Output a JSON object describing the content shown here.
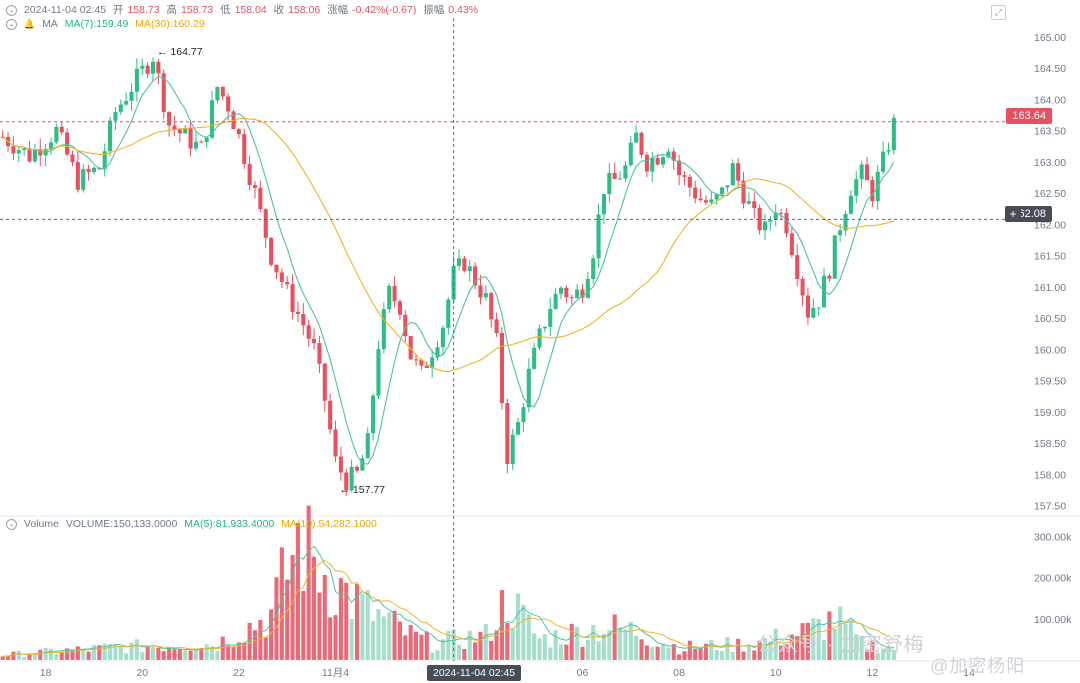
{
  "header": {
    "datetime": "2024-11-04 02:45",
    "open_label": "开",
    "open": "158.73",
    "high_label": "高",
    "high": "158.73",
    "low_label": "低",
    "low": "158.04",
    "close_label": "收",
    "close": "158.06",
    "change_label": "涨幅",
    "change": "-0.42%(-0.67)",
    "amplitude_label": "振幅",
    "amplitude": "0.43%"
  },
  "ma_header": {
    "label": "MA",
    "ma7": "MA(7):159.49",
    "ma30": "MA(30):160.29"
  },
  "volume_header": {
    "label": "Volume",
    "volume": "VOLUME:150,133.0000",
    "ma5": "MA(5):81,933.4000",
    "ma10": "MA(10):54,282.1000"
  },
  "price_tags": {
    "last": "163.64",
    "crosshair": "162.08"
  },
  "crosshair_time": "2024-11-04 02:45",
  "watermark": {
    "line1": "公众号 · 加密舒梅",
    "line2": "@加密杨阳"
  },
  "colors": {
    "up": "#2ebd85",
    "down": "#e84f5f",
    "ma7": "#4fc3a1",
    "ma30": "#f0b429",
    "grid": "#eef0f3",
    "axis_text": "#707a8a"
  },
  "chart_data": {
    "type": "candlestick",
    "price_axis": {
      "ticks": [
        "165.00",
        "164.50",
        "164.00",
        "163.50",
        "163.00",
        "162.50",
        "162.00",
        "161.50",
        "161.00",
        "160.50",
        "160.00",
        "159.50",
        "159.00",
        "158.50",
        "158.00",
        "157.50"
      ],
      "range": [
        157.4,
        165.3
      ]
    },
    "volume_axis": {
      "ticks": [
        "300.00k",
        "200.00k",
        "100.00k"
      ],
      "range": [
        0,
        320000
      ]
    },
    "x_axis": {
      "labels": [
        "18",
        "20",
        "22",
        "11月4",
        "04",
        "06",
        "08",
        "10",
        "12",
        "14"
      ],
      "label_index": [
        8,
        26,
        44,
        62,
        90,
        108,
        126,
        144,
        162,
        180
      ]
    },
    "annotations": [
      {
        "text": "164.77",
        "index": 28,
        "value": 164.77
      },
      {
        "text": "157.77",
        "index": 62,
        "value": 157.77
      }
    ],
    "ohlc_keypoints": [
      [
        0,
        163.4
      ],
      [
        5,
        163.1
      ],
      [
        10,
        163.5
      ],
      [
        14,
        162.7
      ],
      [
        18,
        162.9
      ],
      [
        21,
        163.8
      ],
      [
        24,
        164.2
      ],
      [
        28,
        164.7
      ],
      [
        31,
        163.6
      ],
      [
        34,
        163.4
      ],
      [
        37,
        163.2
      ],
      [
        40,
        164.2
      ],
      [
        42,
        163.9
      ],
      [
        44,
        163.4
      ],
      [
        47,
        162.5
      ],
      [
        50,
        161.5
      ],
      [
        53,
        160.9
      ],
      [
        56,
        160.4
      ],
      [
        58,
        160.0
      ],
      [
        60,
        159.2
      ],
      [
        62,
        158.2
      ],
      [
        64,
        157.9
      ],
      [
        66,
        158.0
      ],
      [
        68,
        158.5
      ],
      [
        70,
        160.1
      ],
      [
        72,
        160.9
      ],
      [
        74,
        160.7
      ],
      [
        76,
        159.9
      ],
      [
        78,
        159.6
      ],
      [
        80,
        160.0
      ],
      [
        82,
        160.4
      ],
      [
        84,
        161.2
      ],
      [
        86,
        161.4
      ],
      [
        88,
        161.1
      ],
      [
        90,
        160.8
      ],
      [
        92,
        160.1
      ],
      [
        94,
        158.3
      ],
      [
        96,
        158.8
      ],
      [
        98,
        159.6
      ],
      [
        100,
        160.2
      ],
      [
        102,
        160.7
      ],
      [
        104,
        161.0
      ],
      [
        106,
        160.8
      ],
      [
        108,
        161.0
      ],
      [
        110,
        161.6
      ],
      [
        112,
        162.6
      ],
      [
        114,
        162.7
      ],
      [
        116,
        162.9
      ],
      [
        118,
        163.4
      ],
      [
        120,
        163.0
      ],
      [
        122,
        163.1
      ],
      [
        124,
        163.3
      ],
      [
        126,
        162.8
      ],
      [
        128,
        162.6
      ],
      [
        130,
        162.4
      ],
      [
        132,
        162.3
      ],
      [
        134,
        162.5
      ],
      [
        136,
        162.9
      ],
      [
        138,
        162.5
      ],
      [
        140,
        162.1
      ],
      [
        142,
        161.9
      ],
      [
        144,
        162.3
      ],
      [
        146,
        162.0
      ],
      [
        148,
        161.3
      ],
      [
        150,
        160.6
      ],
      [
        152,
        160.8
      ],
      [
        154,
        161.3
      ],
      [
        156,
        162.0
      ],
      [
        158,
        162.6
      ],
      [
        160,
        162.8
      ],
      [
        162,
        162.5
      ],
      [
        164,
        163.0
      ],
      [
        166,
        163.6
      ]
    ],
    "volume_keypoints": [
      [
        0,
        12000
      ],
      [
        20,
        30000
      ],
      [
        40,
        40000
      ],
      [
        50,
        110000
      ],
      [
        55,
        290000
      ],
      [
        60,
        210000
      ],
      [
        64,
        160000
      ],
      [
        68,
        120000
      ],
      [
        72,
        90000
      ],
      [
        76,
        60000
      ],
      [
        80,
        40000
      ],
      [
        90,
        60000
      ],
      [
        94,
        150000
      ],
      [
        100,
        50000
      ],
      [
        112,
        80000
      ],
      [
        118,
        70000
      ],
      [
        126,
        30000
      ],
      [
        140,
        40000
      ],
      [
        150,
        70000
      ],
      [
        155,
        100000
      ],
      [
        160,
        40000
      ],
      [
        166,
        30000
      ]
    ]
  }
}
